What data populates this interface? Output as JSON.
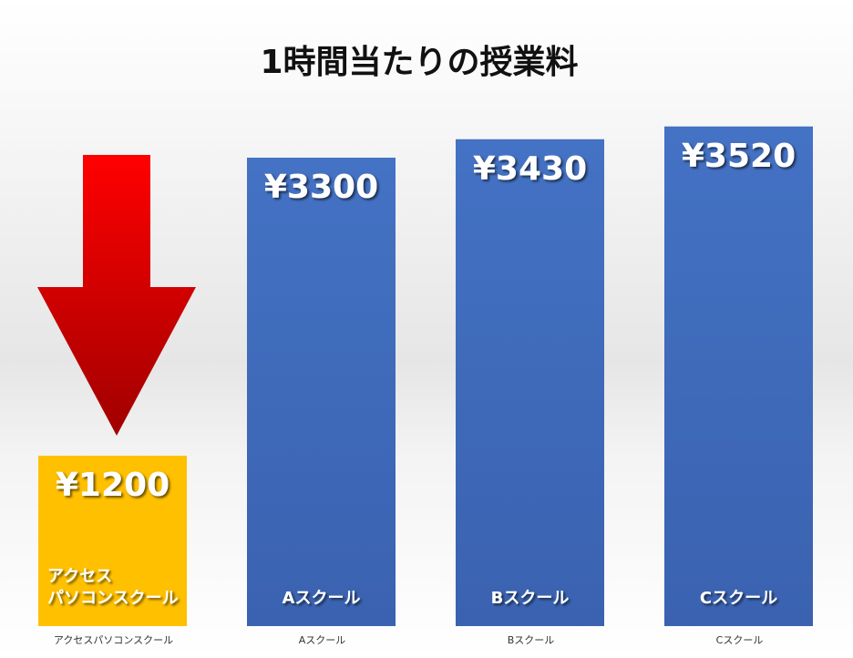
{
  "chart_data": {
    "type": "bar",
    "title": "1時間当たりの授業料",
    "categories": [
      "アクセスパソコンスクール",
      "Aスクール",
      "Bスクール",
      "Cスクール"
    ],
    "bar_labels": [
      [
        "アクセス",
        "パソコンスクール"
      ],
      [
        "Aスクール"
      ],
      [
        "Bスクール"
      ],
      [
        "Cスクール"
      ]
    ],
    "values": [
      1200,
      3300,
      3430,
      3520
    ],
    "value_labels": [
      "¥1200",
      "¥3300",
      "¥3430",
      "¥3520"
    ],
    "colors": [
      "#ffc000",
      "#4472c4",
      "#4472c4",
      "#4472c4"
    ],
    "ylim": [
      0,
      4000
    ]
  }
}
